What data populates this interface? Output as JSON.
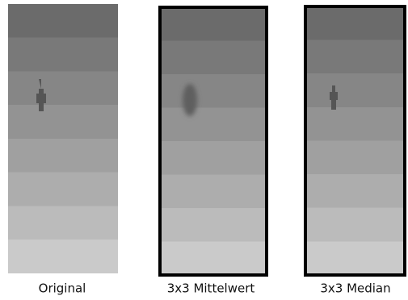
{
  "captions": [
    "Original",
    "3x3 Mittelwert",
    "3x3 Median"
  ]
}
